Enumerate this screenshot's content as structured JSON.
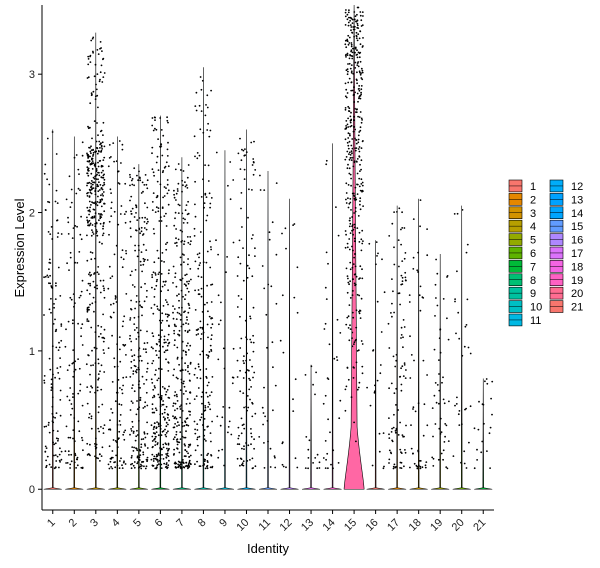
{
  "chart_data": {
    "type": "violin",
    "xlabel": "Identity",
    "ylabel": "Expression Level",
    "ylim": [
      -0.15,
      3.5
    ],
    "yticks": [
      0,
      1,
      2,
      3
    ],
    "grid": false,
    "legend_position": "right",
    "categories": [
      "1",
      "2",
      "3",
      "4",
      "5",
      "6",
      "7",
      "8",
      "9",
      "10",
      "11",
      "12",
      "13",
      "14",
      "15",
      "16",
      "17",
      "18",
      "19",
      "20",
      "21"
    ],
    "colors": [
      "#F8766D",
      "#E58700",
      "#C99800",
      "#A3A500",
      "#6BB100",
      "#00BA38",
      "#00BF7D",
      "#00C0AF",
      "#00BCD8",
      "#00B0F6",
      "#619CFF",
      "#B983FF",
      "#E76BF3",
      "#FD61D1",
      "#FF67A4",
      "#F8766D",
      "#E58700",
      "#C99800",
      "#A3A500",
      "#6BB100",
      "#00BA38"
    ],
    "legend": {
      "col1": [
        "1",
        "2",
        "3",
        "4",
        "5",
        "6",
        "7",
        "8",
        "9",
        "10",
        "11"
      ],
      "col2": [
        "12",
        "13",
        "14",
        "15",
        "16",
        "17",
        "18",
        "19",
        "20",
        "21"
      ],
      "col1_colors": [
        "#F8766D",
        "#E58700",
        "#D39200",
        "#B79F00",
        "#93AA00",
        "#5EB300",
        "#00BA38",
        "#00BF74",
        "#00C19F",
        "#00BFC4",
        "#00B9E3"
      ],
      "col2_colors": [
        "#00ADFA",
        "#00A2FF",
        "#00A5FF",
        "#619CFF",
        "#AE87FF",
        "#DB72FB",
        "#F564E3",
        "#FF61C3",
        "#FF6C91",
        "#F8766D"
      ]
    },
    "violin_max": [
      2.6,
      2.55,
      3.3,
      2.55,
      2.35,
      2.7,
      2.4,
      3.05,
      2.45,
      2.6,
      2.3,
      2.1,
      0.9,
      2.5,
      3.5,
      1.8,
      2.05,
      2.1,
      1.7,
      2.05,
      0.8
    ],
    "point_density": [
      0.3,
      0.25,
      0.95,
      0.3,
      0.55,
      0.75,
      0.7,
      0.45,
      0.08,
      0.3,
      0.08,
      0.05,
      0.04,
      0.08,
      1.0,
      0.06,
      0.25,
      0.12,
      0.12,
      0.08,
      0.05
    ]
  }
}
